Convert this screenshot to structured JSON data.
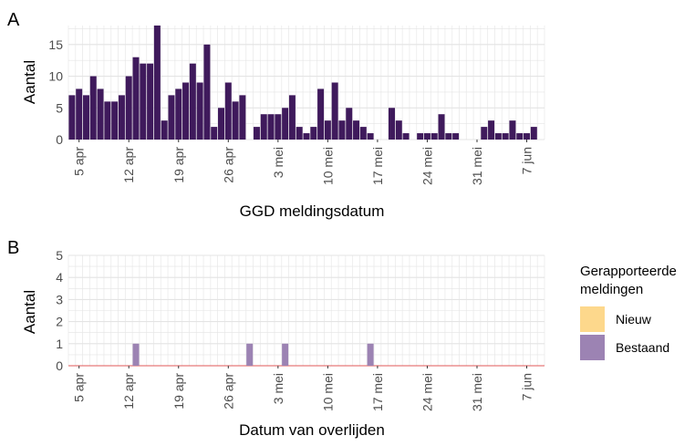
{
  "chart_data": [
    {
      "panel_label": "A",
      "type": "bar",
      "xlabel": "GGD meldingsdatum",
      "ylabel": "Aantal",
      "x_tick_labels": [
        "5 apr",
        "12 apr",
        "19 apr",
        "26 apr",
        "3 mei",
        "10 mei",
        "17 mei",
        "24 mei",
        "31 mei",
        "7 jun"
      ],
      "y_ticks": [
        0,
        5,
        10,
        15
      ],
      "ylim": [
        0,
        18
      ],
      "grid": true,
      "bar_color": "#3f1a5c",
      "start_date": "2020-04-04",
      "x": [
        "4 apr",
        "5 apr",
        "6 apr",
        "7 apr",
        "8 apr",
        "9 apr",
        "10 apr",
        "11 apr",
        "12 apr",
        "13 apr",
        "14 apr",
        "15 apr",
        "16 apr",
        "17 apr",
        "18 apr",
        "19 apr",
        "20 apr",
        "21 apr",
        "22 apr",
        "23 apr",
        "24 apr",
        "25 apr",
        "26 apr",
        "27 apr",
        "28 apr",
        "29 apr",
        "30 apr",
        "1 mei",
        "2 mei",
        "3 mei",
        "4 mei",
        "5 mei",
        "6 mei",
        "7 mei",
        "8 mei",
        "9 mei",
        "10 mei",
        "11 mei",
        "12 mei",
        "13 mei",
        "14 mei",
        "15 mei",
        "16 mei",
        "17 mei",
        "18 mei",
        "19 mei",
        "20 mei",
        "21 mei",
        "22 mei",
        "23 mei",
        "24 mei",
        "25 mei",
        "26 mei",
        "27 mei",
        "28 mei",
        "29 mei",
        "30 mei",
        "31 mei",
        "1 jun",
        "2 jun",
        "3 jun",
        "4 jun",
        "5 jun",
        "6 jun",
        "7 jun",
        "8 jun",
        "9 jun"
      ],
      "values": [
        7,
        8,
        7,
        10,
        8,
        6,
        6,
        7,
        10,
        13,
        12,
        12,
        18,
        3,
        7,
        8,
        9,
        12,
        9,
        15,
        2,
        5,
        9,
        6,
        7,
        0,
        2,
        4,
        4,
        4,
        5,
        7,
        2,
        1,
        2,
        8,
        3,
        9,
        3,
        5,
        3,
        2,
        1,
        0,
        0,
        5,
        3,
        1,
        0,
        1,
        1,
        1,
        4,
        1,
        1,
        0,
        0,
        0,
        2,
        3,
        1,
        1,
        3,
        1,
        1,
        2,
        0
      ]
    },
    {
      "panel_label": "B",
      "type": "bar",
      "stacked": true,
      "xlabel": "Datum van overlijden",
      "ylabel": "Aantal",
      "x_tick_labels": [
        "5 apr",
        "12 apr",
        "19 apr",
        "26 apr",
        "3 mei",
        "10 mei",
        "17 mei",
        "24 mei",
        "31 mei",
        "7 jun"
      ],
      "y_ticks": [
        0,
        1,
        2,
        3,
        4,
        5
      ],
      "ylim": [
        0,
        5
      ],
      "grid": true,
      "legend": {
        "title": "Gerapporteerde meldingen",
        "position": "right",
        "entries": [
          {
            "label": "Nieuw",
            "color": "#fdd88c"
          },
          {
            "label": "Bestaand",
            "color": "#9c83b3"
          }
        ]
      },
      "series": [
        {
          "name": "Nieuw",
          "color": "#fdd88c",
          "points": []
        },
        {
          "name": "Bestaand",
          "color": "#9c83b3",
          "points": [
            {
              "x": "13 apr",
              "y": 1
            },
            {
              "x": "29 apr",
              "y": 1
            },
            {
              "x": "4 mei",
              "y": 1
            },
            {
              "x": "16 mei",
              "y": 1
            }
          ]
        }
      ],
      "baseline_color": "#e05a5a"
    }
  ]
}
